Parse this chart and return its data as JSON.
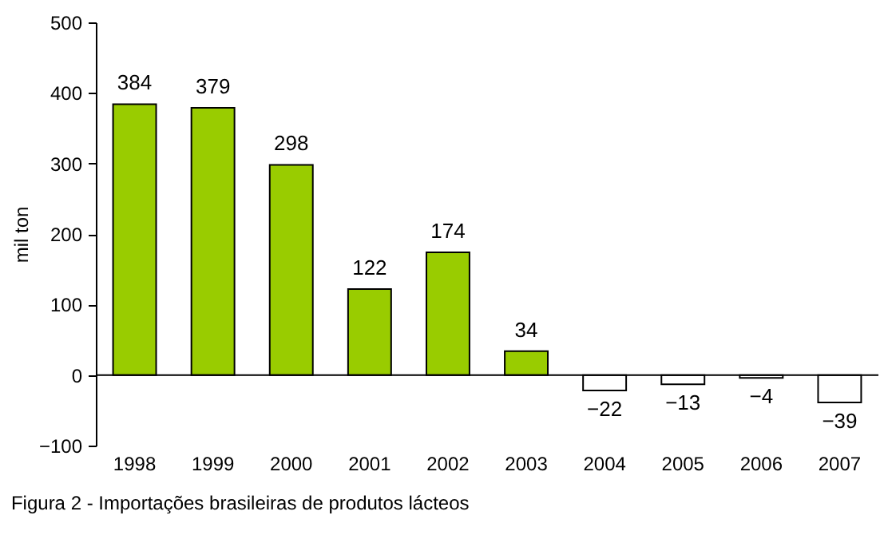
{
  "chart_data": {
    "type": "bar",
    "title": "Figura 2 - Importações brasileiras de produtos lácteos",
    "ylabel": "mil ton",
    "categories": [
      "1998",
      "1999",
      "2000",
      "2001",
      "2002",
      "2003",
      "2004",
      "2005",
      "2006",
      "2007"
    ],
    "values": [
      384,
      379,
      298,
      122,
      174,
      34,
      -22,
      -13,
      -4,
      -39
    ],
    "colors": [
      "#99cc00",
      "#99cc00",
      "#99cc00",
      "#99cc00",
      "#99cc00",
      "#99cc00",
      "#ffffff",
      "#ffffff",
      "#ffffff",
      "#ffffff"
    ],
    "ylim": [
      -100,
      500
    ],
    "yticks": [
      -100,
      0,
      100,
      200,
      300,
      400,
      500
    ],
    "grid": false,
    "data_labels": true,
    "ref_lines": [
      {
        "axis": "y",
        "value": 0,
        "label": null
      }
    ]
  }
}
